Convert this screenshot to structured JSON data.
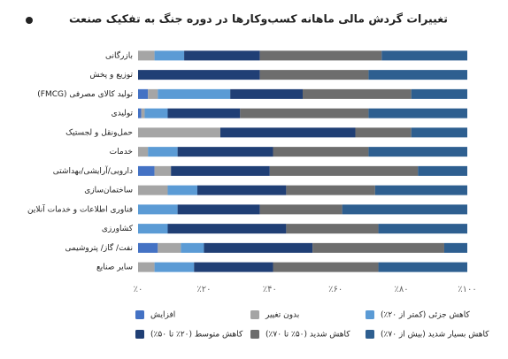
{
  "chart_data": {
    "type": "stacked-barh",
    "title": "تغییرات گردش مالی ماهانه کسب‌وکارها در دوره جنگ به تفکیک صنعت",
    "categories": [
      "بازرگانی",
      "توزیع و پخش",
      "تولید کالای مصرفی (FMCG)",
      "تولیدی",
      "حمل‌ونقل و لجستیک",
      "خدمات",
      "دارویی/آرایشی/بهداشتی",
      "ساختمان‌سازی",
      "فناوری اطلاعات و خدمات آنلاین",
      "کشاورزی",
      "نفت/ گاز/ پتروشیمی",
      "سایر صنایع"
    ],
    "series": [
      {
        "name": "افزایش",
        "color": "#4472c4",
        "values": [
          0,
          0,
          3,
          1,
          0,
          0,
          5,
          0,
          0,
          0,
          6,
          0
        ]
      },
      {
        "name": "بدون تغییر",
        "color": "#a5a5a5",
        "values": [
          5,
          0,
          3,
          1,
          25,
          3,
          5,
          9,
          0,
          0,
          7,
          5
        ]
      },
      {
        "name": "کاهش جزئی (کمتر از ۲۰٪)",
        "color": "#5b9bd5",
        "values": [
          9,
          0,
          22,
          7,
          0,
          9,
          0,
          9,
          12,
          9,
          7,
          12
        ]
      },
      {
        "name": "کاهش متوسط (۲۰٪ تا ۵۰٪)",
        "color": "#203f75",
        "values": [
          23,
          37,
          22,
          22,
          41,
          29,
          30,
          27,
          25,
          36,
          33,
          24
        ]
      },
      {
        "name": "کاهش شدید (۵۰٪ تا ۷۰٪)",
        "color": "#6d6d6d",
        "values": [
          37,
          33,
          33,
          39,
          17,
          29,
          45,
          27,
          25,
          28,
          40,
          32
        ]
      },
      {
        "name": "کاهش بسیار شدید (بیش از ۷۰٪)",
        "color": "#2e5f90",
        "values": [
          26,
          30,
          17,
          30,
          17,
          30,
          15,
          28,
          38,
          27,
          7,
          27
        ]
      }
    ],
    "xlim": [
      0,
      100
    ],
    "xticks": [
      {
        "value": 0,
        "label": "٪۰"
      },
      {
        "value": 20,
        "label": "٪۲۰"
      },
      {
        "value": 40,
        "label": "٪۴۰"
      },
      {
        "value": 60,
        "label": "٪۶۰"
      },
      {
        "value": 80,
        "label": "٪۸۰"
      },
      {
        "value": 100,
        "label": "٪۱۰۰"
      }
    ],
    "grid": false
  }
}
